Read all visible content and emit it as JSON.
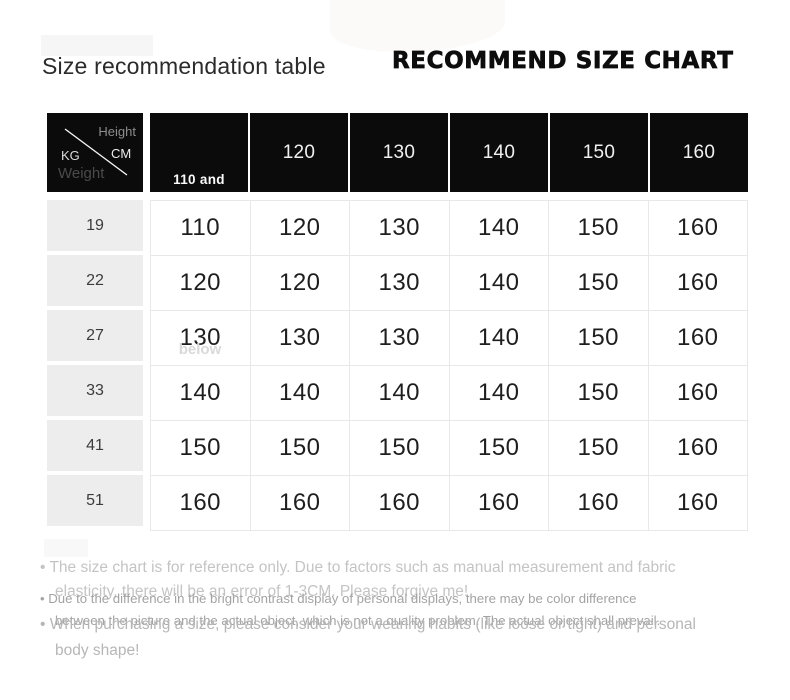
{
  "header": {
    "title_left": "Size recommendation table",
    "title_right": "RECOMMEND SIZE CHART"
  },
  "table": {
    "corner": {
      "height_label": "Height",
      "height_unit": "CM",
      "weight_unit": "KG",
      "weight_label": "Weight"
    },
    "header_columns": [
      "110 and",
      "120",
      "130",
      "140",
      "150",
      "160"
    ],
    "header_overflow": "below",
    "rows": [
      {
        "weight": "19",
        "sizes": [
          "110",
          "120",
          "130",
          "140",
          "150",
          "160"
        ]
      },
      {
        "weight": "22",
        "sizes": [
          "120",
          "120",
          "130",
          "140",
          "150",
          "160"
        ]
      },
      {
        "weight": "27",
        "sizes": [
          "130",
          "130",
          "130",
          "140",
          "150",
          "160"
        ]
      },
      {
        "weight": "33",
        "sizes": [
          "140",
          "140",
          "140",
          "140",
          "150",
          "160"
        ]
      },
      {
        "weight": "41",
        "sizes": [
          "150",
          "150",
          "150",
          "150",
          "150",
          "160"
        ]
      },
      {
        "weight": "51",
        "sizes": [
          "160",
          "160",
          "160",
          "160",
          "160",
          "160"
        ]
      }
    ]
  },
  "notes": [
    "The size chart is for reference only. Due to factors such as manual measurement and fabric elasticity, there will be an error of 1-3CM. Please forgive me!",
    "Due to the difference in the bright contrast display of personal displays, there may be color difference between the picture and the actual object, which is not a quality problem. The actual object shall prevail.",
    "When purchasing a size, please consider your wearing habits (like loose or tight) and personal body shape!"
  ],
  "colors": {
    "header_bg": "#0b0b0b",
    "header_text": "#f0f0f0",
    "corner_muted": "#8d8d8d",
    "corner_dark": "#4a4a4a",
    "weight_column_bg": "#ededed",
    "grid_border": "#e8e8e8",
    "body_text": "#1e1e1e",
    "note_light": "#c4c4c4",
    "note_mid": "#a3a3a3"
  }
}
